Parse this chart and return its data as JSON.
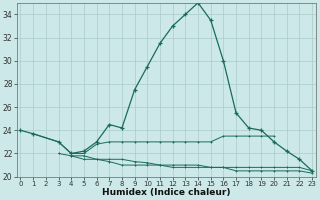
{
  "xlabel": "Humidex (Indice chaleur)",
  "x": [
    0,
    1,
    2,
    3,
    4,
    5,
    6,
    7,
    8,
    9,
    10,
    11,
    12,
    13,
    14,
    15,
    16,
    17,
    18,
    19,
    20,
    21,
    22,
    23
  ],
  "line1_x": [
    0,
    1,
    3,
    4,
    5,
    6,
    7,
    8,
    9,
    10,
    11,
    12,
    13,
    14,
    15,
    16,
    17,
    18,
    19,
    20,
    21,
    22,
    23
  ],
  "line1_y": [
    24.0,
    23.7,
    23.0,
    22.0,
    22.2,
    23.0,
    24.5,
    24.2,
    27.5,
    29.5,
    31.5,
    33.0,
    34.0,
    35.0,
    33.5,
    30.0,
    25.5,
    24.2,
    24.0,
    23.0,
    22.2,
    21.5,
    20.5
  ],
  "line2_x": [
    1,
    3,
    4,
    5,
    6,
    7,
    8,
    9,
    10,
    11,
    12,
    13,
    14,
    15,
    16,
    17,
    18,
    19,
    20
  ],
  "line2_y": [
    23.7,
    23.0,
    22.0,
    22.0,
    22.8,
    23.0,
    23.0,
    23.0,
    23.0,
    23.0,
    23.0,
    23.0,
    23.0,
    23.0,
    23.5,
    23.5,
    23.5,
    23.5,
    23.5
  ],
  "line3_x": [
    3,
    4,
    5,
    6,
    7,
    8,
    9,
    10,
    11,
    12,
    13,
    14,
    15,
    16,
    17,
    18,
    19,
    20,
    21,
    22,
    23
  ],
  "line3_y": [
    22.0,
    21.8,
    21.8,
    21.5,
    21.5,
    21.5,
    21.3,
    21.2,
    21.0,
    21.0,
    21.0,
    21.0,
    20.8,
    20.8,
    20.8,
    20.8,
    20.8,
    20.8,
    20.8,
    20.8,
    20.5
  ],
  "line4_x": [
    4,
    5,
    6,
    7,
    8,
    9,
    10,
    11,
    12,
    13,
    14,
    15,
    16,
    17,
    18,
    19,
    20,
    21,
    22,
    23
  ],
  "line4_y": [
    21.8,
    21.5,
    21.5,
    21.3,
    21.0,
    21.0,
    21.0,
    21.0,
    20.8,
    20.8,
    20.8,
    20.8,
    20.8,
    20.5,
    20.5,
    20.5,
    20.5,
    20.5,
    20.5,
    20.3
  ],
  "color": "#1a6b5a",
  "bg_color": "#cce8e8",
  "grid_color": "#aacccc",
  "ylim": [
    20,
    35
  ],
  "yticks": [
    20,
    22,
    24,
    26,
    28,
    30,
    32,
    34
  ],
  "xlim": [
    -0.3,
    23.3
  ]
}
